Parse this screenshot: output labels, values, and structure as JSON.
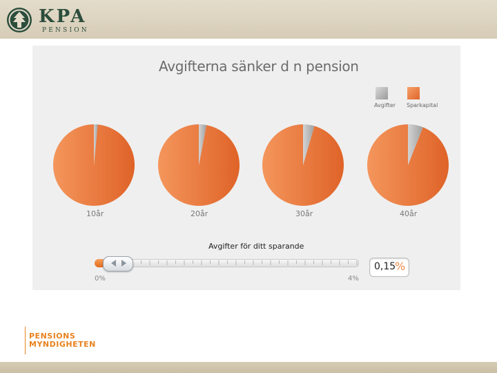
{
  "header": {
    "logo_text": "KPA",
    "logo_sub": "PENSION",
    "brand_color": "#2c4d3c",
    "emblem_icon": "tree-emblem-icon"
  },
  "chart": {
    "title": "Avgifterna sänker d n pension",
    "legend": [
      {
        "label": "Avgifter",
        "color": "#a8a8a8"
      },
      {
        "label": "Sparkapital",
        "color": "#ea7a3e"
      }
    ]
  },
  "chart_data": {
    "type": "pie",
    "title": "Avgifterna sänker d n pension",
    "legend_position": "top-right",
    "series_names": [
      "Avgifter",
      "Sparkapital"
    ],
    "pies": [
      {
        "label": "10år",
        "values": [
          1.5,
          98.5
        ]
      },
      {
        "label": "20år",
        "values": [
          3,
          97
        ]
      },
      {
        "label": "30år",
        "values": [
          4.5,
          95.5
        ]
      },
      {
        "label": "40år",
        "values": [
          6,
          94
        ]
      }
    ]
  },
  "slider": {
    "title": "Avgifter för ditt sparande",
    "min_label": "0%",
    "max_label": "4%",
    "min": 0,
    "max": 4,
    "value": 0.15,
    "value_text": "0,15",
    "unit": "%"
  },
  "footer": {
    "logo_line1": "PENSIONS",
    "logo_line2": "MYNDIGHETEN",
    "color": "#e8821e"
  }
}
